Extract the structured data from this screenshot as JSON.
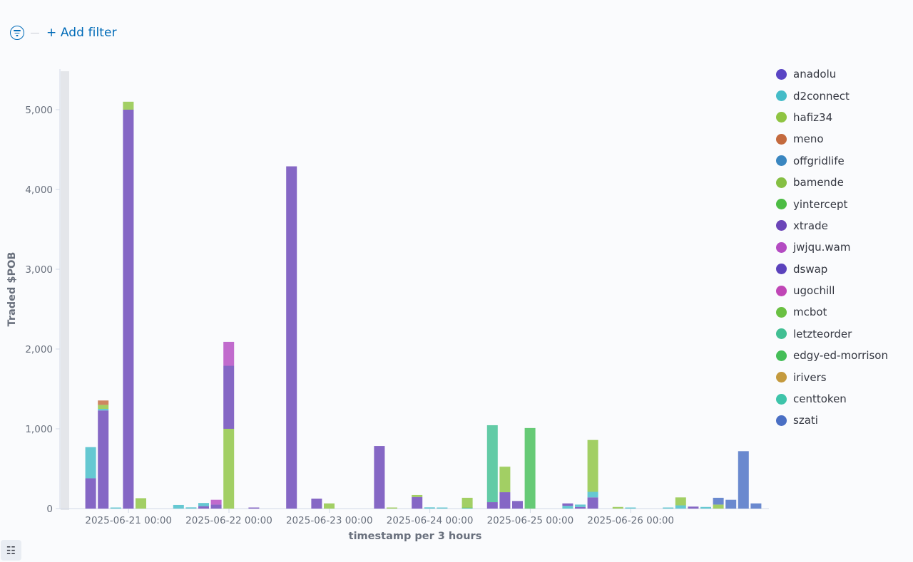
{
  "filter_bar": {
    "filter_icon": "filter-icon",
    "add_filter_label": "+ Add filter"
  },
  "toolbar": {
    "list_icon": "list-icon",
    "list_glyph": "☷"
  },
  "chart_data": {
    "type": "bar",
    "stacked": true,
    "xlabel": "timestamp per 3 hours",
    "ylabel": "Traded $POB",
    "ylim": [
      0,
      5500
    ],
    "y_ticks": [
      0,
      1000,
      2000,
      3000,
      4000,
      5000
    ],
    "y_tick_labels": [
      "0",
      "1,000",
      "2,000",
      "3,000",
      "4,000",
      "5,000"
    ],
    "x_tick_labels": [
      "2025-06-21 00:00",
      "2025-06-22 00:00",
      "2025-06-23 00:00",
      "2025-06-24 00:00",
      "2025-06-25 00:00",
      "2025-06-26 00:00"
    ],
    "x_tick_slots": [
      4.5,
      12.5,
      20.5,
      28.5,
      36.5,
      44.5
    ],
    "grid": false,
    "legend_position": "right",
    "series": [
      {
        "name": "anadolu",
        "color": "#5a45c4"
      },
      {
        "name": "d2connect",
        "color": "#44bcc8"
      },
      {
        "name": "hafiz34",
        "color": "#8fc442"
      },
      {
        "name": "meno",
        "color": "#c46a3e"
      },
      {
        "name": "offgridlife",
        "color": "#3a86c0"
      },
      {
        "name": "bamende",
        "color": "#85bf43"
      },
      {
        "name": "yintercept",
        "color": "#4cbc44"
      },
      {
        "name": "xtrade",
        "color": "#6b45b8"
      },
      {
        "name": "jwjqu.wam",
        "color": "#b44bc2"
      },
      {
        "name": "dswap",
        "color": "#5b42bc"
      },
      {
        "name": "ugochill",
        "color": "#c046b6"
      },
      {
        "name": "mcbot",
        "color": "#6ac042"
      },
      {
        "name": "letzteorder",
        "color": "#41bf93"
      },
      {
        "name": "edgy-ed-morrison",
        "color": "#45be58"
      },
      {
        "name": "irivers",
        "color": "#c49a3e"
      },
      {
        "name": "centtoken",
        "color": "#3ec4aa"
      },
      {
        "name": "szati",
        "color": "#4a6fc4"
      }
    ],
    "bars": [
      {
        "slot": 1,
        "segments": [
          {
            "series": "xtrade",
            "value": 380
          },
          {
            "series": "d2connect",
            "value": 390
          }
        ]
      },
      {
        "slot": 2,
        "segments": [
          {
            "series": "xtrade",
            "value": 1230
          },
          {
            "series": "d2connect",
            "value": 20
          },
          {
            "series": "hafiz34",
            "value": 50
          },
          {
            "series": "meno",
            "value": 55
          }
        ]
      },
      {
        "slot": 3,
        "segments": [
          {
            "series": "d2connect",
            "value": 8
          }
        ]
      },
      {
        "slot": 4,
        "segments": [
          {
            "series": "xtrade",
            "value": 5000
          },
          {
            "series": "hafiz34",
            "value": 100
          }
        ]
      },
      {
        "slot": 5,
        "segments": [
          {
            "series": "hafiz34",
            "value": 130
          }
        ]
      },
      {
        "slot": 8,
        "segments": [
          {
            "series": "d2connect",
            "value": 45
          }
        ]
      },
      {
        "slot": 9,
        "segments": [
          {
            "series": "d2connect",
            "value": 15
          }
        ]
      },
      {
        "slot": 10,
        "segments": [
          {
            "series": "xtrade",
            "value": 30
          },
          {
            "series": "d2connect",
            "value": 40
          }
        ]
      },
      {
        "slot": 11,
        "segments": [
          {
            "series": "xtrade",
            "value": 50
          },
          {
            "series": "jwjqu.wam",
            "value": 60
          }
        ]
      },
      {
        "slot": 12,
        "segments": [
          {
            "series": "hafiz34",
            "value": 1000
          },
          {
            "series": "xtrade",
            "value": 790
          },
          {
            "series": "jwjqu.wam",
            "value": 300
          }
        ]
      },
      {
        "slot": 14,
        "segments": [
          {
            "series": "xtrade",
            "value": 10
          }
        ]
      },
      {
        "slot": 17,
        "segments": [
          {
            "series": "xtrade",
            "value": 4290
          }
        ]
      },
      {
        "slot": 19,
        "segments": [
          {
            "series": "xtrade",
            "value": 125
          }
        ]
      },
      {
        "slot": 20,
        "segments": [
          {
            "series": "hafiz34",
            "value": 65
          }
        ]
      },
      {
        "slot": 24,
        "segments": [
          {
            "series": "xtrade",
            "value": 785
          }
        ]
      },
      {
        "slot": 25,
        "segments": [
          {
            "series": "hafiz34",
            "value": 10
          }
        ]
      },
      {
        "slot": 27,
        "segments": [
          {
            "series": "xtrade",
            "value": 145
          },
          {
            "series": "hafiz34",
            "value": 25
          }
        ]
      },
      {
        "slot": 28,
        "segments": [
          {
            "series": "d2connect",
            "value": 15
          }
        ]
      },
      {
        "slot": 29,
        "segments": [
          {
            "series": "d2connect",
            "value": 10
          }
        ]
      },
      {
        "slot": 31,
        "segments": [
          {
            "series": "letzteorder",
            "value": 10
          },
          {
            "series": "hafiz34",
            "value": 125
          }
        ]
      },
      {
        "slot": 33,
        "segments": [
          {
            "series": "xtrade",
            "value": 80
          },
          {
            "series": "letzteorder",
            "value": 965
          }
        ]
      },
      {
        "slot": 34,
        "segments": [
          {
            "series": "xtrade",
            "value": 205
          },
          {
            "series": "hafiz34",
            "value": 320
          }
        ]
      },
      {
        "slot": 35,
        "segments": [
          {
            "series": "xtrade",
            "value": 95
          }
        ]
      },
      {
        "slot": 36,
        "segments": [
          {
            "series": "edgy-ed-morrison",
            "value": 1010
          }
        ]
      },
      {
        "slot": 39,
        "segments": [
          {
            "series": "d2connect",
            "value": 35
          },
          {
            "series": "xtrade",
            "value": 30
          }
        ]
      },
      {
        "slot": 40,
        "segments": [
          {
            "series": "xtrade",
            "value": 20
          },
          {
            "series": "d2connect",
            "value": 30
          }
        ]
      },
      {
        "slot": 41,
        "segments": [
          {
            "series": "xtrade",
            "value": 140
          },
          {
            "series": "d2connect",
            "value": 70
          },
          {
            "series": "hafiz34",
            "value": 650
          }
        ]
      },
      {
        "slot": 43,
        "segments": [
          {
            "series": "hafiz34",
            "value": 20
          }
        ]
      },
      {
        "slot": 44,
        "segments": [
          {
            "series": "d2connect",
            "value": 10
          }
        ]
      },
      {
        "slot": 47,
        "segments": [
          {
            "series": "d2connect",
            "value": 10
          }
        ]
      },
      {
        "slot": 48,
        "segments": [
          {
            "series": "d2connect",
            "value": 40
          },
          {
            "series": "hafiz34",
            "value": 100
          }
        ]
      },
      {
        "slot": 49,
        "segments": [
          {
            "series": "xtrade",
            "value": 25
          }
        ]
      },
      {
        "slot": 50,
        "segments": [
          {
            "series": "d2connect",
            "value": 20
          }
        ]
      },
      {
        "slot": 51,
        "segments": [
          {
            "series": "hafiz34",
            "value": 50
          },
          {
            "series": "szati",
            "value": 85
          }
        ]
      },
      {
        "slot": 52,
        "segments": [
          {
            "series": "szati",
            "value": 110
          }
        ]
      },
      {
        "slot": 53,
        "segments": [
          {
            "series": "szati",
            "value": 720
          }
        ]
      },
      {
        "slot": 54,
        "segments": [
          {
            "series": "szati",
            "value": 65
          }
        ]
      }
    ]
  }
}
